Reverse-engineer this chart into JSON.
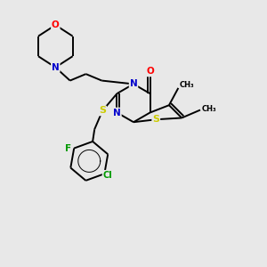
{
  "bg_color": "#e8e8e8",
  "bond_color": "#000000",
  "atom_colors": {
    "N": "#0000cc",
    "O": "#ff0000",
    "S": "#cccc00",
    "F": "#009900",
    "Cl": "#009900",
    "C": "#000000"
  }
}
